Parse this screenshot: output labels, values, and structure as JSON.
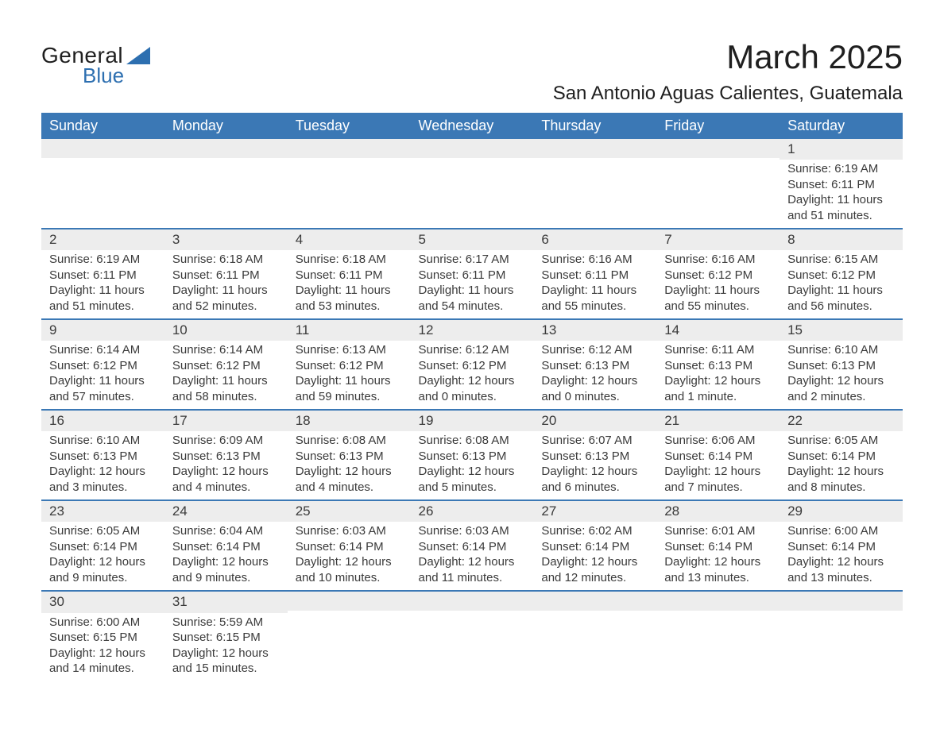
{
  "brand": {
    "general": "General",
    "blue": "Blue"
  },
  "title": "March 2025",
  "location": "San Antonio Aguas Calientes, Guatemala",
  "colors": {
    "header_bg": "#3b78b5",
    "header_text": "#ffffff",
    "row_divider": "#3b78b5",
    "daynum_bg": "#ededed",
    "text": "#3a3a3a",
    "logo_blue": "#2d6fb0",
    "page_bg": "#ffffff"
  },
  "typography": {
    "title_fontsize": 42,
    "location_fontsize": 24,
    "weekday_fontsize": 18,
    "daynum_fontsize": 17,
    "body_fontsize": 15
  },
  "weekdays": [
    "Sunday",
    "Monday",
    "Tuesday",
    "Wednesday",
    "Thursday",
    "Friday",
    "Saturday"
  ],
  "weeks": [
    [
      null,
      null,
      null,
      null,
      null,
      null,
      {
        "n": "1",
        "sunrise": "Sunrise: 6:19 AM",
        "sunset": "Sunset: 6:11 PM",
        "daylight1": "Daylight: 11 hours",
        "daylight2": "and 51 minutes."
      }
    ],
    [
      {
        "n": "2",
        "sunrise": "Sunrise: 6:19 AM",
        "sunset": "Sunset: 6:11 PM",
        "daylight1": "Daylight: 11 hours",
        "daylight2": "and 51 minutes."
      },
      {
        "n": "3",
        "sunrise": "Sunrise: 6:18 AM",
        "sunset": "Sunset: 6:11 PM",
        "daylight1": "Daylight: 11 hours",
        "daylight2": "and 52 minutes."
      },
      {
        "n": "4",
        "sunrise": "Sunrise: 6:18 AM",
        "sunset": "Sunset: 6:11 PM",
        "daylight1": "Daylight: 11 hours",
        "daylight2": "and 53 minutes."
      },
      {
        "n": "5",
        "sunrise": "Sunrise: 6:17 AM",
        "sunset": "Sunset: 6:11 PM",
        "daylight1": "Daylight: 11 hours",
        "daylight2": "and 54 minutes."
      },
      {
        "n": "6",
        "sunrise": "Sunrise: 6:16 AM",
        "sunset": "Sunset: 6:11 PM",
        "daylight1": "Daylight: 11 hours",
        "daylight2": "and 55 minutes."
      },
      {
        "n": "7",
        "sunrise": "Sunrise: 6:16 AM",
        "sunset": "Sunset: 6:12 PM",
        "daylight1": "Daylight: 11 hours",
        "daylight2": "and 55 minutes."
      },
      {
        "n": "8",
        "sunrise": "Sunrise: 6:15 AM",
        "sunset": "Sunset: 6:12 PM",
        "daylight1": "Daylight: 11 hours",
        "daylight2": "and 56 minutes."
      }
    ],
    [
      {
        "n": "9",
        "sunrise": "Sunrise: 6:14 AM",
        "sunset": "Sunset: 6:12 PM",
        "daylight1": "Daylight: 11 hours",
        "daylight2": "and 57 minutes."
      },
      {
        "n": "10",
        "sunrise": "Sunrise: 6:14 AM",
        "sunset": "Sunset: 6:12 PM",
        "daylight1": "Daylight: 11 hours",
        "daylight2": "and 58 minutes."
      },
      {
        "n": "11",
        "sunrise": "Sunrise: 6:13 AM",
        "sunset": "Sunset: 6:12 PM",
        "daylight1": "Daylight: 11 hours",
        "daylight2": "and 59 minutes."
      },
      {
        "n": "12",
        "sunrise": "Sunrise: 6:12 AM",
        "sunset": "Sunset: 6:12 PM",
        "daylight1": "Daylight: 12 hours",
        "daylight2": "and 0 minutes."
      },
      {
        "n": "13",
        "sunrise": "Sunrise: 6:12 AM",
        "sunset": "Sunset: 6:13 PM",
        "daylight1": "Daylight: 12 hours",
        "daylight2": "and 0 minutes."
      },
      {
        "n": "14",
        "sunrise": "Sunrise: 6:11 AM",
        "sunset": "Sunset: 6:13 PM",
        "daylight1": "Daylight: 12 hours",
        "daylight2": "and 1 minute."
      },
      {
        "n": "15",
        "sunrise": "Sunrise: 6:10 AM",
        "sunset": "Sunset: 6:13 PM",
        "daylight1": "Daylight: 12 hours",
        "daylight2": "and 2 minutes."
      }
    ],
    [
      {
        "n": "16",
        "sunrise": "Sunrise: 6:10 AM",
        "sunset": "Sunset: 6:13 PM",
        "daylight1": "Daylight: 12 hours",
        "daylight2": "and 3 minutes."
      },
      {
        "n": "17",
        "sunrise": "Sunrise: 6:09 AM",
        "sunset": "Sunset: 6:13 PM",
        "daylight1": "Daylight: 12 hours",
        "daylight2": "and 4 minutes."
      },
      {
        "n": "18",
        "sunrise": "Sunrise: 6:08 AM",
        "sunset": "Sunset: 6:13 PM",
        "daylight1": "Daylight: 12 hours",
        "daylight2": "and 4 minutes."
      },
      {
        "n": "19",
        "sunrise": "Sunrise: 6:08 AM",
        "sunset": "Sunset: 6:13 PM",
        "daylight1": "Daylight: 12 hours",
        "daylight2": "and 5 minutes."
      },
      {
        "n": "20",
        "sunrise": "Sunrise: 6:07 AM",
        "sunset": "Sunset: 6:13 PM",
        "daylight1": "Daylight: 12 hours",
        "daylight2": "and 6 minutes."
      },
      {
        "n": "21",
        "sunrise": "Sunrise: 6:06 AM",
        "sunset": "Sunset: 6:14 PM",
        "daylight1": "Daylight: 12 hours",
        "daylight2": "and 7 minutes."
      },
      {
        "n": "22",
        "sunrise": "Sunrise: 6:05 AM",
        "sunset": "Sunset: 6:14 PM",
        "daylight1": "Daylight: 12 hours",
        "daylight2": "and 8 minutes."
      }
    ],
    [
      {
        "n": "23",
        "sunrise": "Sunrise: 6:05 AM",
        "sunset": "Sunset: 6:14 PM",
        "daylight1": "Daylight: 12 hours",
        "daylight2": "and 9 minutes."
      },
      {
        "n": "24",
        "sunrise": "Sunrise: 6:04 AM",
        "sunset": "Sunset: 6:14 PM",
        "daylight1": "Daylight: 12 hours",
        "daylight2": "and 9 minutes."
      },
      {
        "n": "25",
        "sunrise": "Sunrise: 6:03 AM",
        "sunset": "Sunset: 6:14 PM",
        "daylight1": "Daylight: 12 hours",
        "daylight2": "and 10 minutes."
      },
      {
        "n": "26",
        "sunrise": "Sunrise: 6:03 AM",
        "sunset": "Sunset: 6:14 PM",
        "daylight1": "Daylight: 12 hours",
        "daylight2": "and 11 minutes."
      },
      {
        "n": "27",
        "sunrise": "Sunrise: 6:02 AM",
        "sunset": "Sunset: 6:14 PM",
        "daylight1": "Daylight: 12 hours",
        "daylight2": "and 12 minutes."
      },
      {
        "n": "28",
        "sunrise": "Sunrise: 6:01 AM",
        "sunset": "Sunset: 6:14 PM",
        "daylight1": "Daylight: 12 hours",
        "daylight2": "and 13 minutes."
      },
      {
        "n": "29",
        "sunrise": "Sunrise: 6:00 AM",
        "sunset": "Sunset: 6:14 PM",
        "daylight1": "Daylight: 12 hours",
        "daylight2": "and 13 minutes."
      }
    ],
    [
      {
        "n": "30",
        "sunrise": "Sunrise: 6:00 AM",
        "sunset": "Sunset: 6:15 PM",
        "daylight1": "Daylight: 12 hours",
        "daylight2": "and 14 minutes."
      },
      {
        "n": "31",
        "sunrise": "Sunrise: 5:59 AM",
        "sunset": "Sunset: 6:15 PM",
        "daylight1": "Daylight: 12 hours",
        "daylight2": "and 15 minutes."
      },
      null,
      null,
      null,
      null,
      null
    ]
  ]
}
